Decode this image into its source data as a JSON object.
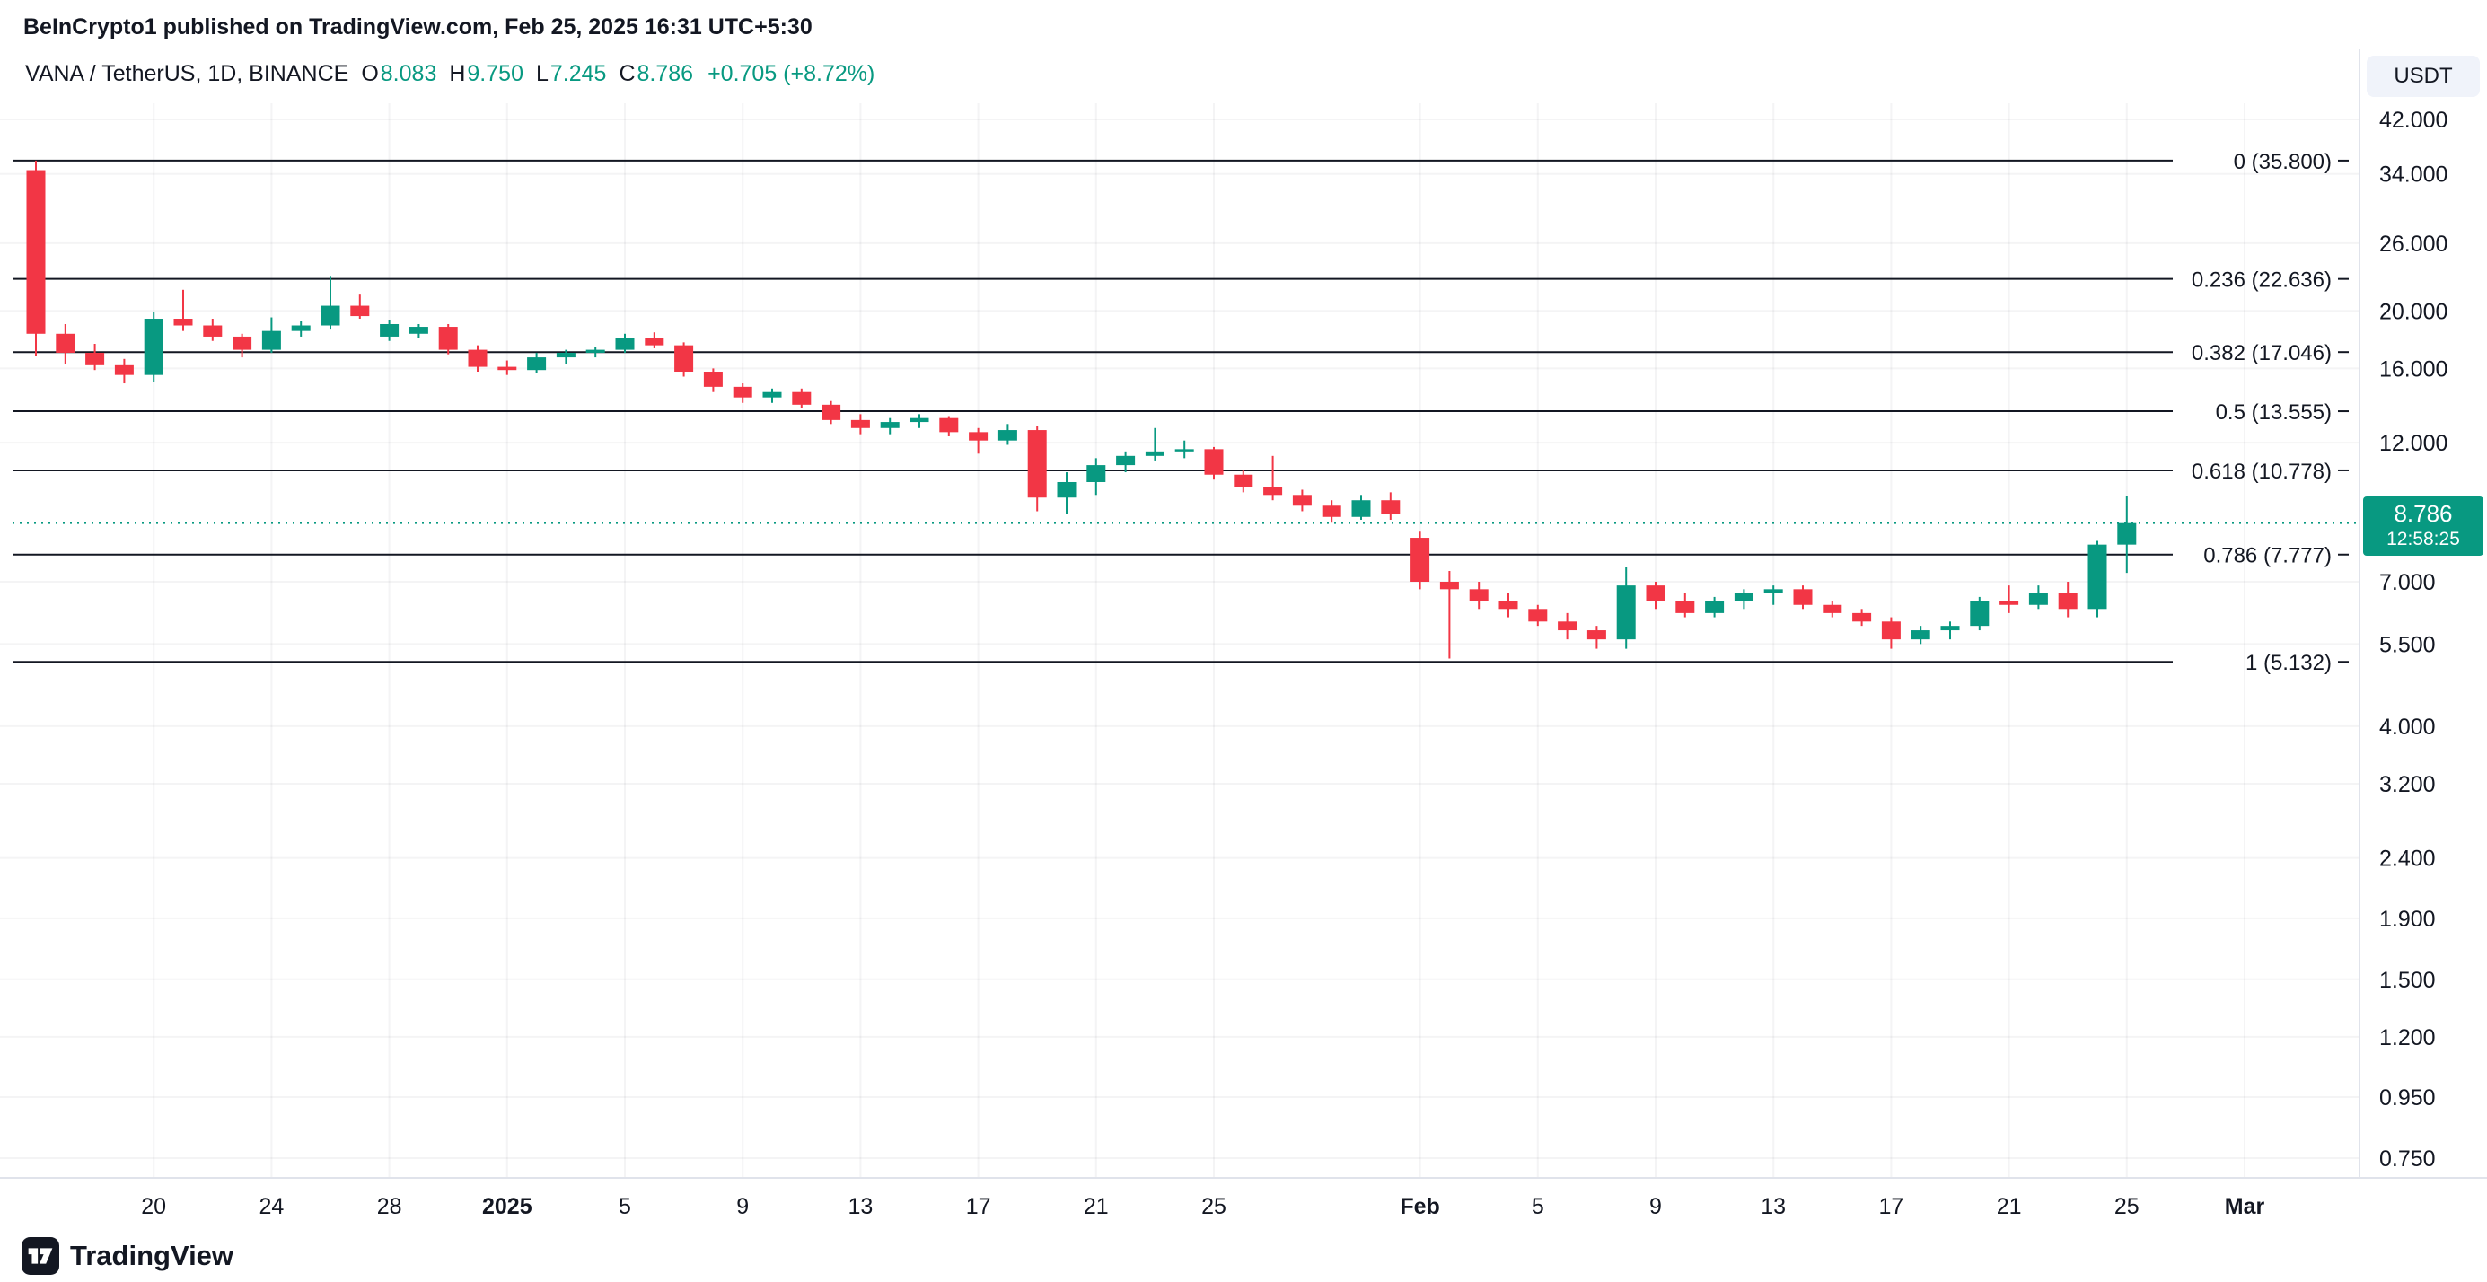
{
  "attribution": "BeInCrypto1 published on TradingView.com, Feb 25, 2025 16:31 UTC+5:30",
  "legend": {
    "symbol": "VANA / TetherUS, 1D, BINANCE",
    "o_label": "O",
    "o": "8.083",
    "h_label": "H",
    "h": "9.750",
    "l_label": "L",
    "l": "7.245",
    "c_label": "C",
    "c": "8.786",
    "change": "+0.705 (+8.72%)"
  },
  "currency_button": "USDT",
  "price_badge": {
    "price": "8.786",
    "countdown": "12:58:25"
  },
  "watermark": {
    "label": "TradingView"
  },
  "colors": {
    "up": "#089981",
    "down": "#F23645",
    "text": "#131722",
    "muted": "#787B86",
    "axis_line": "#E0E3EB",
    "grid": "rgba(42,46,57,0.05)",
    "badge_bg": "#089981",
    "button_bg": "#F0F3FA"
  },
  "chart_data": {
    "type": "candlestick",
    "title": "VANA / TetherUS, 1D, BINANCE",
    "symbol": "VANA/USDT",
    "timeframe": "1D",
    "exchange": "BINANCE",
    "scale": "log",
    "start_date": "2024-12-16",
    "current_price": 8.786,
    "last_ohlc": {
      "open": 8.083,
      "high": 9.75,
      "low": 7.245,
      "close": 8.786,
      "change": "+0.705 (+8.72%)"
    },
    "y_axis": [
      {
        "t": "42.000",
        "p": 42.0
      },
      {
        "t": "34.000",
        "p": 34.0
      },
      {
        "t": "26.000",
        "p": 26.0
      },
      {
        "t": "20.000",
        "p": 20.0
      },
      {
        "t": "16.000",
        "p": 16.0
      },
      {
        "t": "12.000",
        "p": 12.0
      },
      {
        "t": "7.000",
        "p": 7.0
      },
      {
        "t": "5.500",
        "p": 5.5
      },
      {
        "t": "4.000",
        "p": 4.0
      },
      {
        "t": "3.200",
        "p": 3.2
      },
      {
        "t": "2.400",
        "p": 2.4
      },
      {
        "t": "1.900",
        "p": 1.9
      },
      {
        "t": "1.500",
        "p": 1.5
      },
      {
        "t": "1.200",
        "p": 1.2
      },
      {
        "t": "0.950",
        "p": 0.95
      },
      {
        "t": "0.750",
        "p": 0.75
      }
    ],
    "x_axis": [
      {
        "i": 4,
        "t": "20"
      },
      {
        "i": 8,
        "t": "24"
      },
      {
        "i": 12,
        "t": "28"
      },
      {
        "i": 16,
        "t": "2025",
        "bold": true
      },
      {
        "i": 20,
        "t": "5"
      },
      {
        "i": 24,
        "t": "9"
      },
      {
        "i": 28,
        "t": "13"
      },
      {
        "i": 32,
        "t": "17"
      },
      {
        "i": 36,
        "t": "21"
      },
      {
        "i": 40,
        "t": "25"
      },
      {
        "i": 47,
        "t": "Feb",
        "bold": true
      },
      {
        "i": 51,
        "t": "5"
      },
      {
        "i": 55,
        "t": "9"
      },
      {
        "i": 59,
        "t": "13"
      },
      {
        "i": 63,
        "t": "17"
      },
      {
        "i": 67,
        "t": "21"
      },
      {
        "i": 71,
        "t": "25"
      },
      {
        "i": 75,
        "t": "Mar",
        "bold": true
      }
    ],
    "fib_levels": [
      {
        "label": "0 (35.800)",
        "level": 0,
        "price": 35.8
      },
      {
        "label": "0.236 (22.636)",
        "level": 0.236,
        "price": 22.636
      },
      {
        "label": "0.382 (17.046)",
        "level": 0.382,
        "price": 17.046
      },
      {
        "label": "0.5 (13.555)",
        "level": 0.5,
        "price": 13.555
      },
      {
        "label": "0.618 (10.778)",
        "level": 0.618,
        "price": 10.778
      },
      {
        "label": "0.786 (7.777)",
        "level": 0.786,
        "price": 7.777
      },
      {
        "label": "1 (5.132)",
        "level": 1,
        "price": 5.132
      }
    ],
    "candles": [
      [
        34.5,
        35.8,
        16.8,
        18.3
      ],
      [
        18.3,
        19.0,
        16.3,
        17.0
      ],
      [
        17.0,
        17.6,
        15.9,
        16.2
      ],
      [
        16.2,
        16.6,
        15.1,
        15.6
      ],
      [
        15.6,
        19.9,
        15.2,
        19.4
      ],
      [
        19.4,
        21.7,
        18.5,
        18.9
      ],
      [
        18.9,
        19.4,
        17.8,
        18.1
      ],
      [
        18.1,
        18.3,
        16.7,
        17.2
      ],
      [
        17.2,
        19.5,
        17.0,
        18.5
      ],
      [
        18.5,
        19.2,
        18.1,
        18.9
      ],
      [
        18.9,
        22.9,
        18.6,
        20.4
      ],
      [
        20.4,
        21.3,
        19.4,
        19.6
      ],
      [
        18.1,
        19.3,
        17.8,
        19.0
      ],
      [
        18.3,
        19.0,
        18.0,
        18.8
      ],
      [
        18.8,
        19.0,
        16.9,
        17.2
      ],
      [
        17.2,
        17.5,
        15.8,
        16.1
      ],
      [
        16.1,
        16.5,
        15.6,
        15.9
      ],
      [
        15.9,
        17.0,
        15.7,
        16.7
      ],
      [
        16.7,
        17.2,
        16.3,
        17.0
      ],
      [
        17.0,
        17.4,
        16.7,
        17.2
      ],
      [
        17.2,
        18.3,
        17.0,
        18.0
      ],
      [
        18.0,
        18.4,
        17.3,
        17.5
      ],
      [
        17.5,
        17.7,
        15.5,
        15.8
      ],
      [
        15.8,
        16.0,
        14.6,
        14.9
      ],
      [
        14.9,
        15.1,
        14.0,
        14.3
      ],
      [
        14.3,
        14.8,
        14.0,
        14.6
      ],
      [
        14.6,
        14.8,
        13.7,
        13.9
      ],
      [
        13.9,
        14.1,
        12.9,
        13.1
      ],
      [
        13.1,
        13.4,
        12.4,
        12.7
      ],
      [
        12.7,
        13.2,
        12.4,
        13.0
      ],
      [
        13.0,
        13.4,
        12.7,
        13.2
      ],
      [
        13.2,
        13.3,
        12.3,
        12.5
      ],
      [
        12.5,
        12.7,
        11.5,
        12.1
      ],
      [
        12.1,
        12.9,
        11.9,
        12.6
      ],
      [
        12.6,
        12.8,
        9.2,
        9.7
      ],
      [
        9.7,
        10.7,
        9.1,
        10.3
      ],
      [
        10.3,
        11.3,
        9.8,
        11.0
      ],
      [
        11.0,
        11.6,
        10.7,
        11.4
      ],
      [
        11.4,
        12.7,
        11.2,
        11.6
      ],
      [
        11.6,
        12.1,
        11.3,
        11.7
      ],
      [
        11.7,
        11.8,
        10.4,
        10.6
      ],
      [
        10.6,
        10.8,
        9.9,
        10.1
      ],
      [
        10.1,
        11.4,
        9.6,
        9.8
      ],
      [
        9.8,
        10.0,
        9.2,
        9.4
      ],
      [
        9.4,
        9.6,
        8.8,
        9.0
      ],
      [
        9.0,
        9.8,
        8.9,
        9.6
      ],
      [
        9.6,
        9.9,
        8.9,
        9.1
      ],
      [
        8.3,
        8.5,
        6.8,
        7.0
      ],
      [
        7.0,
        7.3,
        5.2,
        6.8
      ],
      [
        6.8,
        7.0,
        6.3,
        6.5
      ],
      [
        6.5,
        6.7,
        6.1,
        6.3
      ],
      [
        6.3,
        6.4,
        5.9,
        6.0
      ],
      [
        6.0,
        6.2,
        5.6,
        5.8
      ],
      [
        5.8,
        5.9,
        5.4,
        5.6
      ],
      [
        5.6,
        7.4,
        5.4,
        6.9
      ],
      [
        6.9,
        7.0,
        6.3,
        6.5
      ],
      [
        6.5,
        6.7,
        6.1,
        6.2
      ],
      [
        6.2,
        6.6,
        6.1,
        6.5
      ],
      [
        6.5,
        6.8,
        6.3,
        6.7
      ],
      [
        6.7,
        6.9,
        6.4,
        6.8
      ],
      [
        6.8,
        6.9,
        6.3,
        6.4
      ],
      [
        6.4,
        6.5,
        6.1,
        6.2
      ],
      [
        6.2,
        6.3,
        5.9,
        6.0
      ],
      [
        6.0,
        6.1,
        5.4,
        5.6
      ],
      [
        5.6,
        5.9,
        5.5,
        5.8
      ],
      [
        5.8,
        6.0,
        5.6,
        5.9
      ],
      [
        5.9,
        6.6,
        5.8,
        6.5
      ],
      [
        6.5,
        6.9,
        6.2,
        6.4
      ],
      [
        6.4,
        6.9,
        6.3,
        6.7
      ],
      [
        6.7,
        7.0,
        6.1,
        6.3
      ],
      [
        6.3,
        8.2,
        6.1,
        8.083
      ],
      [
        8.083,
        9.75,
        7.245,
        8.786
      ]
    ]
  }
}
